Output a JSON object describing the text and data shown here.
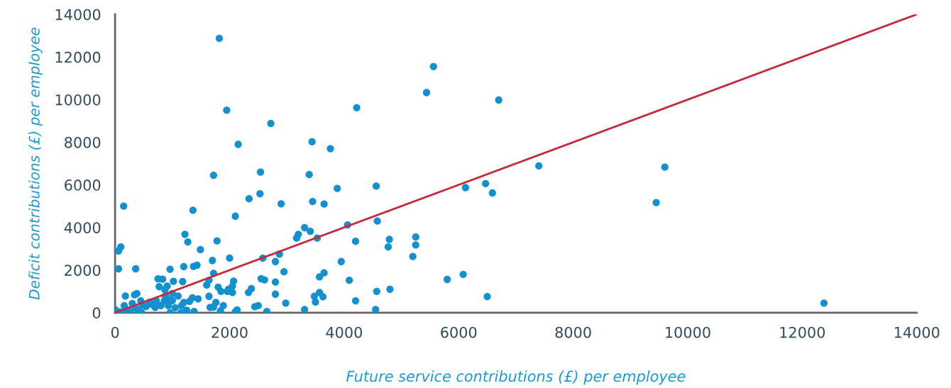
{
  "chart_data": {
    "type": "scatter",
    "xlabel": "Future service contributions (£) per employee",
    "ylabel": "Deficit contributions (£) per employee",
    "xlim": [
      0,
      14000
    ],
    "ylim": [
      0,
      14000
    ],
    "xticks": [
      0,
      2000,
      4000,
      6000,
      8000,
      10000,
      12000,
      14000
    ],
    "yticks": [
      0,
      2000,
      4000,
      6000,
      8000,
      10000,
      12000,
      14000
    ],
    "grid": false,
    "series": [
      {
        "marker": "circle",
        "color": "#1390d0",
        "x": [
          1820,
          5560,
          5440,
          4220,
          6700,
          1950,
          2720,
          2150,
          3440,
          3760,
          1720,
          2540,
          3390,
          3880,
          4560,
          2340,
          2530,
          2900,
          3450,
          3650,
          6120,
          6470,
          6590,
          7400,
          9600,
          9450,
          12380,
          150,
          1360,
          2100,
          4060,
          4580,
          3310,
          3410,
          3170,
          3200,
          3530,
          4200,
          4790,
          5250,
          5250,
          4770,
          5200,
          1220,
          1270,
          1780,
          1490,
          60,
          100,
          60,
          360,
          2870,
          2000,
          2580,
          3950,
          2800,
          3570,
          3650,
          4090,
          5800,
          6080,
          6500,
          4800,
          4570,
          4200,
          4550,
          3310,
          2650,
          2980,
          2800,
          2950,
          2800,
          3480,
          3570,
          3630,
          3500,
          2550,
          2380,
          2330,
          2440,
          2500,
          2610,
          2130,
          2100,
          1850,
          1960,
          2050,
          2070,
          2050,
          1720,
          1700,
          1370,
          1430,
          1200,
          960,
          750,
          770,
          830,
          870,
          910,
          1020,
          1180,
          1600,
          1640,
          1800,
          180,
          380,
          340,
          300,
          230,
          160,
          80,
          0,
          130,
          260,
          400,
          480,
          600,
          640,
          700,
          720,
          800,
          860,
          930,
          960,
          1000,
          1100,
          1160,
          1200,
          1250,
          1300,
          1350,
          1380,
          1450,
          1640,
          1660,
          1720,
          1760,
          1840,
          1890,
          1980,
          450,
          540,
          460,
          350,
          1050,
          1150,
          880,
          950,
          1000
        ],
        "values": [
          12870,
          11550,
          10330,
          9620,
          9980,
          9500,
          8880,
          7900,
          8020,
          7700,
          6450,
          6600,
          6480,
          5830,
          5940,
          5350,
          5580,
          5110,
          5220,
          5100,
          5870,
          6060,
          5620,
          6890,
          6830,
          5170,
          450,
          5000,
          4810,
          4530,
          4120,
          4300,
          3990,
          3820,
          3500,
          3680,
          3500,
          3350,
          3440,
          3550,
          3180,
          3090,
          2640,
          3680,
          3320,
          3370,
          2960,
          2900,
          3090,
          2060,
          2060,
          2750,
          2560,
          2560,
          2400,
          2400,
          1680,
          1870,
          1520,
          1560,
          1800,
          760,
          1100,
          1000,
          560,
          150,
          150,
          60,
          450,
          1440,
          1920,
          870,
          770,
          950,
          750,
          500,
          1600,
          1130,
          950,
          280,
          330,
          1540,
          130,
          40,
          1000,
          1000,
          1250,
          1480,
          950,
          1850,
          2450,
          2170,
          2230,
          2160,
          2040,
          1590,
          1220,
          1570,
          1080,
          1250,
          1470,
          1460,
          1300,
          1520,
          1200,
          780,
          900,
          840,
          430,
          120,
          330,
          40,
          150,
          20,
          0,
          150,
          360,
          490,
          390,
          250,
          560,
          330,
          560,
          330,
          0,
          570,
          780,
          330,
          480,
          120,
          530,
          700,
          60,
          650,
          770,
          250,
          270,
          480,
          80,
          330,
          1100,
          560,
          290,
          20,
          220,
          230,
          0,
          780,
          600,
          900
        ]
      },
      {
        "type": "line",
        "color": "#c8283c",
        "x": [
          0,
          14000
        ],
        "values": [
          0,
          14000
        ]
      }
    ]
  }
}
